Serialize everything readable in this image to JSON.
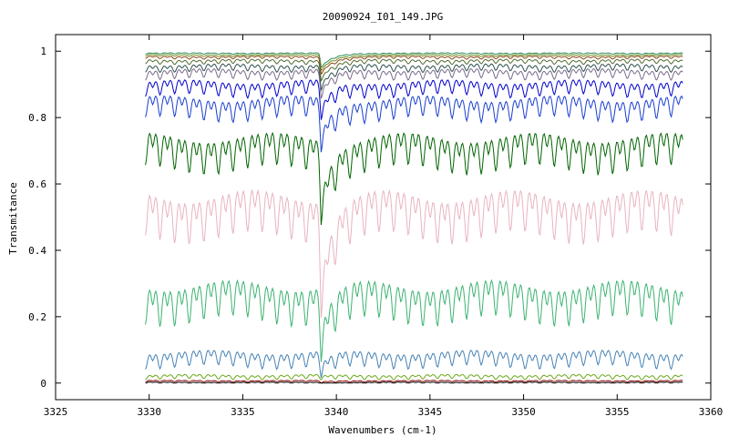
{
  "chart_data": {
    "type": "line",
    "title": "20090924_I01_149.JPG",
    "xlabel": "Wavenumbers (cm-1)",
    "ylabel": "Transmitance",
    "xlim": [
      3325,
      3360
    ],
    "ylim": [
      -0.05,
      1.05
    ],
    "x_ticks": [
      3325,
      3330,
      3335,
      3340,
      3345,
      3350,
      3355,
      3360
    ],
    "y_ticks": [
      0,
      0.2,
      0.4,
      0.6,
      0.8,
      1
    ],
    "y_tick_labels": [
      "0",
      "0.2",
      "0.4",
      "0.6",
      "0.8",
      "1"
    ],
    "grid": false,
    "legend": "none",
    "x_range_data": [
      3329.8,
      3358.5
    ],
    "absorption_line_wavenumber": 3339.2,
    "series": [
      {
        "baseline": 0.995,
        "color": "#2e8b57"
      },
      {
        "baseline": 0.99,
        "color": "#6b8e23"
      },
      {
        "baseline": 0.985,
        "color": "#8b4513"
      },
      {
        "baseline": 0.975,
        "color": "#556b2f"
      },
      {
        "baseline": 0.96,
        "color": "#2f4f4f"
      },
      {
        "baseline": 0.945,
        "color": "#7b6b8b"
      },
      {
        "baseline": 0.91,
        "color": "#0000cd"
      },
      {
        "baseline": 0.86,
        "color": "#1a3fcf"
      },
      {
        "baseline": 0.745,
        "color": "#006400"
      },
      {
        "baseline": 0.57,
        "color": "#e8b4c0"
      },
      {
        "baseline": 0.3,
        "color": "#3cb371"
      },
      {
        "baseline": 0.095,
        "color": "#4682b4"
      },
      {
        "baseline": 0.025,
        "color": "#6aaa1a"
      },
      {
        "baseline": 0.008,
        "color": "#8b0000"
      },
      {
        "baseline": 0.003,
        "color": "#000000"
      }
    ]
  }
}
